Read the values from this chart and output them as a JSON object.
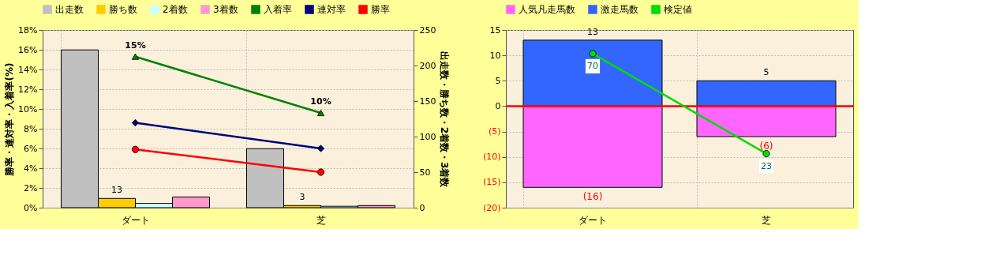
{
  "chart_data": [
    {
      "type": "bar",
      "categories": [
        "ダート",
        "芝"
      ],
      "ylabel": "勝率・連対率・入着率(%)",
      "y2label": "出走数・勝ち数・2着数・3着数",
      "ylim": [
        0,
        18
      ],
      "yticks": [
        {
          "value": 0,
          "label": "0%"
        },
        {
          "value": 2,
          "label": "2%"
        },
        {
          "value": 4,
          "label": "4%"
        },
        {
          "value": 6,
          "label": "6%"
        },
        {
          "value": 8,
          "label": "8%"
        },
        {
          "value": 10,
          "label": "10%"
        },
        {
          "value": 12,
          "label": "12%"
        },
        {
          "value": 14,
          "label": "14%"
        },
        {
          "value": 16,
          "label": "16%"
        },
        {
          "value": 18,
          "label": "18%"
        }
      ],
      "y2lim": [
        0,
        250
      ],
      "y2ticks": [
        0,
        50,
        100,
        150,
        200,
        250
      ],
      "grid": true,
      "legend": "top",
      "series": [
        {
          "name": "出走数",
          "color": "#c0c0c0",
          "values": [
            222,
            83
          ],
          "axis": "y2"
        },
        {
          "name": "勝ち数",
          "color": "#ffcc00",
          "values": [
            13,
            3
          ],
          "axis": "y2",
          "value_labels": [
            "13",
            "3"
          ]
        },
        {
          "name": "2着数",
          "color": "#ccffff",
          "values": [
            6,
            2
          ],
          "axis": "y2"
        },
        {
          "name": "3着数",
          "color": "#ff99cc",
          "values": [
            15,
            3
          ],
          "axis": "y2"
        },
        {
          "name": "入着率",
          "type": "line",
          "color": "#008000",
          "marker": "triangle",
          "values": [
            15.3,
            9.6
          ],
          "value_labels": [
            "15%",
            "10%"
          ]
        },
        {
          "name": "連対率",
          "type": "line",
          "color": "#000080",
          "marker": "diamond",
          "values": [
            8.6,
            6.0
          ]
        },
        {
          "name": "勝率",
          "type": "line",
          "color": "#ff0000",
          "marker": "circle",
          "values": [
            5.9,
            3.6
          ]
        }
      ]
    },
    {
      "type": "bar",
      "categories": [
        "ダート",
        "芝"
      ],
      "stacked": true,
      "ylim": [
        -20,
        15
      ],
      "yticks": [
        {
          "value": -20,
          "label": "(20)"
        },
        {
          "value": -15,
          "label": "(15)"
        },
        {
          "value": -10,
          "label": "(10)"
        },
        {
          "value": -5,
          "label": "(5)"
        },
        0,
        5,
        10,
        15
      ],
      "y2lim": [
        -2.4,
        81.1
      ],
      "grid": true,
      "legend": "top",
      "ref_lines": [
        {
          "axis": "y",
          "value": 0,
          "color": "#ff0000"
        }
      ],
      "series": [
        {
          "name": "人気凡走馬数",
          "color": "#ff66ff",
          "values": [
            -16,
            -6
          ],
          "value_labels": [
            "(16)",
            "(6)"
          ]
        },
        {
          "name": "激走馬数",
          "color": "#3366ff",
          "values": [
            13,
            5
          ],
          "value_labels": [
            "13",
            "5"
          ]
        },
        {
          "name": "検定値",
          "type": "line",
          "color": "#00dd00",
          "marker": "circle",
          "axis": "y2",
          "values": [
            70,
            23
          ],
          "value_labels": [
            "70",
            "23"
          ]
        }
      ]
    }
  ]
}
